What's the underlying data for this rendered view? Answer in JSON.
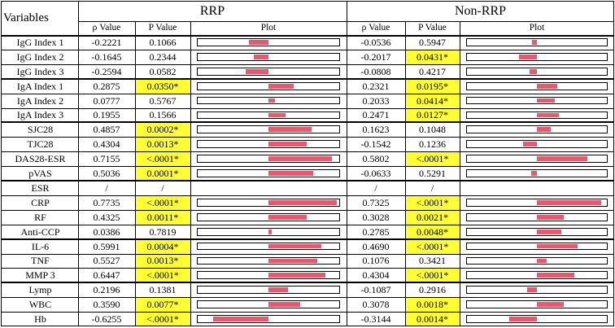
{
  "header": {
    "variables": "Variables",
    "group1": "RRP",
    "group2": "Non-RRP",
    "rho": "ρ Value",
    "p": "P Value",
    "plot": "Plot"
  },
  "colors": {
    "highlight": "#ffff33",
    "bar": "#e8586e"
  },
  "scale_max_abs_rho": 0.8,
  "rows": [
    {
      "label": "IgG Index 1",
      "r1": "-0.2221",
      "p1": "0.1066",
      "s1": false,
      "r2": "-0.0536",
      "p2": "0.5947",
      "s2": false
    },
    {
      "label": "IgG Index 2",
      "r1": "-0.1645",
      "p1": "0.2344",
      "s1": false,
      "r2": "-0.2017",
      "p2": "0.0431*",
      "s2": true
    },
    {
      "label": "IgG Index 3",
      "r1": "-0.2594",
      "p1": "0.0582",
      "s1": false,
      "r2": "-0.0808",
      "p2": "0.4217",
      "s2": false
    },
    {
      "label": "IgA Index 1",
      "r1": "0.2875",
      "p1": "0.0350*",
      "s1": true,
      "r2": "0.2321",
      "p2": "0.0195*",
      "s2": true
    },
    {
      "label": "IgA Index 2",
      "r1": "0.0777",
      "p1": "0.5767",
      "s1": false,
      "r2": "0.2033",
      "p2": "0.0414*",
      "s2": true
    },
    {
      "label": "IgA Index 3",
      "r1": "0.1955",
      "p1": "0.1566",
      "s1": false,
      "r2": "0.2471",
      "p2": "0.0127*",
      "s2": true
    },
    {
      "label": "SJC28",
      "r1": "0.4857",
      "p1": "0.0002*",
      "s1": true,
      "r2": "0.1623",
      "p2": "0.1048",
      "s2": false
    },
    {
      "label": "TJC28",
      "r1": "0.4304",
      "p1": "0.0013*",
      "s1": true,
      "r2": "-0.1542",
      "p2": "0.1236",
      "s2": false
    },
    {
      "label": "DAS28-ESR",
      "r1": "0.7155",
      "p1": "<.0001*",
      "s1": true,
      "r2": "0.5802",
      "p2": "<.0001*",
      "s2": true
    },
    {
      "label": "pVAS",
      "r1": "0.5036",
      "p1": "0.0001*",
      "s1": true,
      "r2": "-0.0633",
      "p2": "0.5291",
      "s2": false
    },
    {
      "label": "ESR",
      "r1": "/",
      "p1": "/",
      "s1": false,
      "r2": "/",
      "p2": "/",
      "s2": false,
      "noplot": true
    },
    {
      "label": "CRP",
      "r1": "0.7735",
      "p1": "<.0001*",
      "s1": true,
      "r2": "0.7325",
      "p2": "<.0001*",
      "s2": true
    },
    {
      "label": "RF",
      "r1": "0.4325",
      "p1": "0.0011*",
      "s1": true,
      "r2": "0.3028",
      "p2": "0.0021*",
      "s2": true
    },
    {
      "label": "Anti-CCP",
      "r1": "0.0386",
      "p1": "0.7819",
      "s1": false,
      "r2": "0.2785",
      "p2": "0.0048*",
      "s2": true
    },
    {
      "label": "IL-6",
      "r1": "0.5991",
      "p1": "0.0004*",
      "s1": true,
      "r2": "0.4690",
      "p2": "<.0001*",
      "s2": true
    },
    {
      "label": "TNF",
      "r1": "0.5527",
      "p1": "0.0013*",
      "s1": true,
      "r2": "0.1076",
      "p2": "0.3421",
      "s2": false
    },
    {
      "label": "MMP 3",
      "r1": "0.6447",
      "p1": "<.0001*",
      "s1": true,
      "r2": "0.4304",
      "p2": "<.0001*",
      "s2": true
    },
    {
      "label": "Lymp",
      "r1": "0.2196",
      "p1": "0.1381",
      "s1": false,
      "r2": "-0.1087",
      "p2": "0.2916",
      "s2": false
    },
    {
      "label": "WBC",
      "r1": "0.3590",
      "p1": "0.0077*",
      "s1": true,
      "r2": "0.3078",
      "p2": "0.0018*",
      "s2": true
    },
    {
      "label": "Hb",
      "r1": "-0.6255",
      "p1": "<.0001*",
      "s1": true,
      "r2": "-0.3144",
      "p2": "0.0014*",
      "s2": true
    }
  ]
}
